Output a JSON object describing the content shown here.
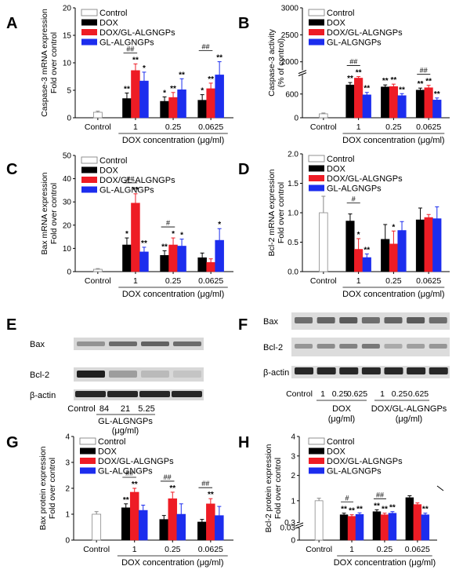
{
  "figure": {
    "series_names": [
      "Control",
      "DOX",
      "DOX/GL-ALGNGPs",
      "GL-ALGNGPs"
    ],
    "colors": {
      "Control": "#ffffff",
      "DOX": "#000000",
      "DOX/GL-ALGNGPs": "#ee1c25",
      "GL-ALGNGPs": "#1c2dee"
    },
    "xlabel": "DOX concentration (μg/ml)"
  },
  "chart_data": [
    {
      "panel": "A",
      "type": "bar",
      "ylabel": [
        "Caspase-3 mRNA expression",
        "Fold over control"
      ],
      "xlabel": "DOX concentration (μg/ml)",
      "categories": [
        "Control",
        "1",
        "0.25",
        "0.0625"
      ],
      "ylim": [
        0,
        20
      ],
      "yticks": [
        0,
        5,
        10,
        15,
        20
      ],
      "grid": false,
      "series": [
        {
          "name": "Control",
          "values": [
            1.0,
            null,
            null,
            null
          ],
          "err": [
            0.2,
            null,
            null,
            null
          ]
        },
        {
          "name": "DOX",
          "values": [
            null,
            3.5,
            3.0,
            3.2
          ],
          "err": [
            null,
            1.0,
            0.8,
            1.0
          ]
        },
        {
          "name": "DOX/GL-ALGNGPs",
          "values": [
            null,
            8.6,
            3.7,
            5.3
          ],
          "err": [
            null,
            1.2,
            0.9,
            1.0
          ]
        },
        {
          "name": "GL-ALGNGPs",
          "values": [
            null,
            6.7,
            5.1,
            7.8
          ],
          "err": [
            null,
            1.6,
            2.0,
            2.4
          ]
        }
      ],
      "annotations": [
        {
          "cat": 1,
          "series": 1,
          "text": "**"
        },
        {
          "cat": 1,
          "series": 2,
          "text": "**"
        },
        {
          "cat": 1,
          "series": 3,
          "text": "*"
        },
        {
          "cat": 2,
          "series": 1,
          "text": "*"
        },
        {
          "cat": 2,
          "series": 2,
          "text": "**"
        },
        {
          "cat": 2,
          "series": 3,
          "text": "**"
        },
        {
          "cat": 3,
          "series": 1,
          "text": "*"
        },
        {
          "cat": 3,
          "series": 2,
          "text": "**"
        },
        {
          "cat": 3,
          "series": 3,
          "text": "**"
        }
      ],
      "hash_marks": [
        {
          "cat": 1,
          "text": "##"
        },
        {
          "cat": 3,
          "text": "##"
        }
      ]
    },
    {
      "panel": "B",
      "type": "bar",
      "ylabel": [
        "Caspase-3 activity",
        "(% of control)"
      ],
      "xlabel": "DOX concentration (μg/ml)",
      "categories": [
        "Control",
        "1",
        "0.25",
        "0.0625"
      ],
      "axis_break": true,
      "ylim": [
        0,
        3000
      ],
      "yticks": [
        0,
        600,
        2000,
        2500,
        3000
      ],
      "grid": false,
      "series": [
        {
          "name": "Control",
          "values": [
            100,
            null,
            null,
            null
          ],
          "err": [
            20,
            null,
            null,
            null
          ]
        },
        {
          "name": "DOX",
          "values": [
            null,
            830,
            780,
            700
          ],
          "err": [
            null,
            60,
            50,
            50
          ]
        },
        {
          "name": "DOX/GL-ALGNGPs",
          "values": [
            null,
            1010,
            790,
            760
          ],
          "err": [
            null,
            120,
            60,
            60
          ]
        },
        {
          "name": "GL-ALGNGPs",
          "values": [
            null,
            580,
            560,
            450
          ],
          "err": [
            null,
            60,
            50,
            50
          ]
        }
      ],
      "annotations": [
        {
          "cat": 1,
          "series": 1,
          "text": "**"
        },
        {
          "cat": 1,
          "series": 2,
          "text": "**"
        },
        {
          "cat": 1,
          "series": 3,
          "text": "**"
        },
        {
          "cat": 2,
          "series": 1,
          "text": "**"
        },
        {
          "cat": 2,
          "series": 2,
          "text": "**"
        },
        {
          "cat": 2,
          "series": 3,
          "text": "**"
        },
        {
          "cat": 3,
          "series": 1,
          "text": "**"
        },
        {
          "cat": 3,
          "series": 2,
          "text": "**"
        },
        {
          "cat": 3,
          "series": 3,
          "text": "**"
        }
      ],
      "hash_marks": [
        {
          "cat": 1,
          "text": "##"
        },
        {
          "cat": 3,
          "text": "##"
        }
      ]
    },
    {
      "panel": "C",
      "type": "bar",
      "ylabel": [
        "Bax mRNA expression",
        "Fold over control"
      ],
      "xlabel": "DOX concentration (μg/ml)",
      "categories": [
        "Control",
        "1",
        "0.25",
        "0.0625"
      ],
      "ylim": [
        0,
        50
      ],
      "yticks": [
        0,
        10,
        20,
        30,
        40,
        50
      ],
      "grid": false,
      "series": [
        {
          "name": "Control",
          "values": [
            1.0,
            null,
            null,
            null
          ],
          "err": [
            0.3,
            null,
            null,
            null
          ]
        },
        {
          "name": "DOX",
          "values": [
            null,
            11.5,
            7.0,
            6.0
          ],
          "err": [
            null,
            3.0,
            2.0,
            2.0
          ]
        },
        {
          "name": "DOX/GL-ALGNGPs",
          "values": [
            null,
            29.5,
            11.5,
            4.0
          ],
          "err": [
            null,
            4.0,
            3.0,
            1.5
          ]
        },
        {
          "name": "GL-ALGNGPs",
          "values": [
            null,
            8.5,
            11.0,
            13.5
          ],
          "err": [
            null,
            2.0,
            3.0,
            5.0
          ]
        }
      ],
      "annotations": [
        {
          "cat": 1,
          "series": 1,
          "text": "*"
        },
        {
          "cat": 1,
          "series": 2,
          "text": "**"
        },
        {
          "cat": 1,
          "series": 3,
          "text": "**"
        },
        {
          "cat": 2,
          "series": 1,
          "text": "**"
        },
        {
          "cat": 2,
          "series": 2,
          "text": "*"
        },
        {
          "cat": 2,
          "series": 3,
          "text": "*"
        },
        {
          "cat": 3,
          "series": 3,
          "text": "*"
        }
      ],
      "hash_marks": [
        {
          "cat": 1,
          "text": "##"
        },
        {
          "cat": 2,
          "text": "#"
        }
      ]
    },
    {
      "panel": "D",
      "type": "bar",
      "ylabel": [
        "Bcl-2 mRNA  expression",
        "Fold over control"
      ],
      "xlabel": "DOX concentration (μg/ml)",
      "categories": [
        "Control",
        "1",
        "0.25",
        "0.0625"
      ],
      "ylim": [
        0,
        2.0
      ],
      "yticks": [
        0.0,
        0.5,
        1.0,
        1.5,
        2.0
      ],
      "grid": false,
      "series": [
        {
          "name": "Control",
          "values": [
            1.0,
            null,
            null,
            null
          ],
          "err": [
            0.28,
            null,
            null,
            null
          ]
        },
        {
          "name": "DOX",
          "values": [
            null,
            0.86,
            0.55,
            0.88
          ],
          "err": [
            null,
            0.12,
            0.25,
            0.2
          ]
        },
        {
          "name": "DOX/GL-ALGNGPs",
          "values": [
            null,
            0.38,
            0.47,
            0.92
          ],
          "err": [
            null,
            0.18,
            0.22,
            0.05
          ]
        },
        {
          "name": "GL-ALGNGPs",
          "values": [
            null,
            0.24,
            0.7,
            0.9
          ],
          "err": [
            null,
            0.06,
            0.15,
            0.2
          ]
        }
      ],
      "annotations": [
        {
          "cat": 1,
          "series": 2,
          "text": "*"
        },
        {
          "cat": 1,
          "series": 3,
          "text": "**"
        },
        {
          "cat": 2,
          "series": 2,
          "text": "*"
        }
      ],
      "hash_marks": [
        {
          "cat": 1,
          "text": "#"
        }
      ]
    },
    {
      "panel": "G",
      "type": "bar",
      "ylabel": [
        "Bax protein expression",
        "Fold over control"
      ],
      "xlabel": "DOX concentration (μg/ml)",
      "categories": [
        "Control",
        "1",
        "0.25",
        "0.0625"
      ],
      "ylim": [
        0,
        4
      ],
      "yticks": [
        0,
        1,
        2,
        3,
        4
      ],
      "grid": false,
      "series": [
        {
          "name": "Control",
          "values": [
            1.0,
            null,
            null,
            null
          ],
          "err": [
            0.1,
            null,
            null,
            null
          ]
        },
        {
          "name": "DOX",
          "values": [
            null,
            1.25,
            0.8,
            0.7
          ],
          "err": [
            null,
            0.15,
            0.15,
            0.1
          ]
        },
        {
          "name": "DOX/GL-ALGNGPs",
          "values": [
            null,
            1.85,
            1.6,
            1.4
          ],
          "err": [
            null,
            0.15,
            0.25,
            0.2
          ]
        },
        {
          "name": "GL-ALGNGPs",
          "values": [
            null,
            1.15,
            1.0,
            0.95
          ],
          "err": [
            null,
            0.2,
            0.4,
            0.35
          ]
        }
      ],
      "annotations": [
        {
          "cat": 1,
          "series": 1,
          "text": "**"
        },
        {
          "cat": 1,
          "series": 2,
          "text": "**"
        },
        {
          "cat": 2,
          "series": 2,
          "text": "**"
        },
        {
          "cat": 3,
          "series": 2,
          "text": "**"
        }
      ],
      "hash_marks": [
        {
          "cat": 1,
          "text": "##"
        },
        {
          "cat": 2,
          "text": "##"
        },
        {
          "cat": 3,
          "text": "##"
        }
      ]
    },
    {
      "panel": "H",
      "type": "bar",
      "ylabel": [
        "Bcl-2 protein expression",
        "Fold over control"
      ],
      "xlabel": "DOX concentration (μg/ml)",
      "categories": [
        "Control",
        "1",
        "0.25",
        "0.0625"
      ],
      "axis_break": true,
      "ylim": [
        0,
        4
      ],
      "yticks": [
        0,
        0.03,
        0.3,
        1,
        2,
        3,
        4
      ],
      "grid": false,
      "series": [
        {
          "name": "Control",
          "values": [
            1.0,
            null,
            null,
            null
          ],
          "err": [
            0.08,
            null,
            null,
            null
          ]
        },
        {
          "name": "DOX",
          "values": [
            null,
            0.55,
            0.65,
            1.1
          ],
          "err": [
            null,
            0.05,
            0.06,
            0.06
          ]
        },
        {
          "name": "DOX/GL-ALGNGPs",
          "values": [
            null,
            0.5,
            0.55,
            0.88
          ],
          "err": [
            null,
            0.05,
            0.05,
            0.05
          ]
        },
        {
          "name": "GL-ALGNGPs",
          "values": [
            null,
            0.56,
            0.6,
            0.55
          ],
          "err": [
            null,
            0.05,
            0.05,
            0.05
          ]
        }
      ],
      "annotations": [
        {
          "cat": 1,
          "series": 1,
          "text": "**"
        },
        {
          "cat": 1,
          "series": 2,
          "text": "**"
        },
        {
          "cat": 1,
          "series": 3,
          "text": "**"
        },
        {
          "cat": 2,
          "series": 1,
          "text": "**"
        },
        {
          "cat": 2,
          "series": 2,
          "text": "**"
        },
        {
          "cat": 2,
          "series": 3,
          "text": "**"
        },
        {
          "cat": 3,
          "series": 3,
          "text": "**"
        }
      ],
      "hash_marks": [
        {
          "cat": 1,
          "text": "#"
        },
        {
          "cat": 2,
          "text": "##"
        }
      ]
    }
  ],
  "blots": [
    {
      "panel": "E",
      "rows": [
        "Bax",
        "Bcl-2",
        "β-actin"
      ],
      "lanes": [
        "Control",
        "84",
        "21",
        "5.25"
      ],
      "group_label": [
        "GL-ALGNGPs",
        "(μg/ml)"
      ]
    },
    {
      "panel": "F",
      "rows": [
        "Bax",
        "Bcl-2",
        "β-actin"
      ],
      "lanes": [
        "Control",
        "1",
        "0.25",
        "0.625",
        "1",
        "0.25",
        "0.625"
      ],
      "groups": [
        [
          "DOX",
          "(μg/ml)"
        ],
        [
          "DOX/GL-ALGNGPs",
          "(μg/ml)"
        ]
      ]
    }
  ]
}
